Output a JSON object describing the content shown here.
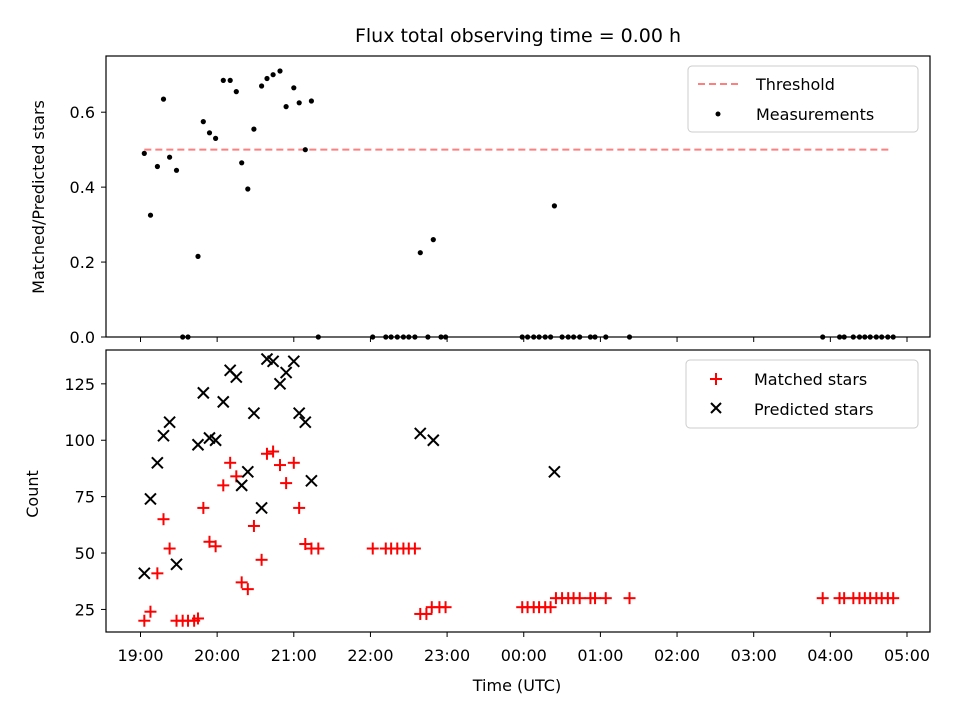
{
  "chart_data": [
    {
      "type": "scatter",
      "title": "Flux total observing time = 0.00 h",
      "xlabel": "",
      "ylabel": "Matched/Predicted stars",
      "ylim": [
        0,
        0.75
      ],
      "yticks": [
        0.0,
        0.2,
        0.4,
        0.6
      ],
      "ytick_labels": [
        "0.0",
        "0.2",
        "0.4",
        "0.6"
      ],
      "legend_position": "top-right",
      "grid": false,
      "threshold": {
        "name": "Threshold",
        "value": 0.5,
        "x_start": 19.05,
        "x_end": 28.8,
        "color": "#ff7f7f"
      },
      "series": [
        {
          "name": "Measurements",
          "color": "#000000",
          "marker": "dot",
          "x": [
            19.05,
            19.13,
            19.22,
            19.3,
            19.38,
            19.47,
            19.55,
            19.62,
            19.75,
            19.82,
            19.9,
            19.98,
            20.08,
            20.17,
            20.25,
            20.32,
            20.4,
            20.48,
            20.58,
            20.65,
            20.73,
            20.82,
            20.9,
            21.0,
            21.07,
            21.15,
            21.23,
            21.32,
            22.03,
            22.2,
            22.27,
            22.35,
            22.43,
            22.5,
            22.58,
            22.65,
            22.75,
            22.82,
            22.92,
            22.98,
            23.98,
            24.05,
            24.13,
            24.2,
            24.28,
            24.35,
            24.4,
            24.5,
            24.58,
            24.65,
            24.73,
            24.87,
            24.93,
            25.07,
            25.38,
            27.9,
            28.12,
            28.18,
            28.3,
            28.38,
            28.45,
            28.52,
            28.6,
            28.67,
            28.75,
            28.82
          ],
          "y": [
            0.49,
            0.325,
            0.455,
            0.635,
            0.48,
            0.445,
            0.0,
            0.0,
            0.215,
            0.575,
            0.545,
            0.53,
            0.685,
            0.685,
            0.655,
            0.465,
            0.395,
            0.555,
            0.67,
            0.69,
            0.7,
            0.71,
            0.615,
            0.665,
            0.625,
            0.5,
            0.63,
            0.0,
            0.0,
            0.0,
            0.0,
            0.0,
            0.0,
            0.0,
            0.0,
            0.225,
            0.0,
            0.26,
            0.0,
            0.0,
            0.0,
            0.0,
            0.0,
            0.0,
            0.0,
            0.0,
            0.35,
            0.0,
            0.0,
            0.0,
            0.0,
            0.0,
            0.0,
            0.0,
            0.0,
            0.0,
            0.0,
            0.0,
            0.0,
            0.0,
            0.0,
            0.0,
            0.0,
            0.0,
            0.0,
            0.0
          ]
        }
      ]
    },
    {
      "type": "scatter",
      "title": "",
      "xlabel": "Time (UTC)",
      "ylabel": "Count",
      "xlim": [
        18.55,
        29.3
      ],
      "ylim": [
        15,
        140
      ],
      "yticks": [
        25,
        50,
        75,
        100,
        125
      ],
      "ytick_labels": [
        "25",
        "50",
        "75",
        "100",
        "125"
      ],
      "xticks": [
        19,
        20,
        21,
        22,
        23,
        24,
        25,
        26,
        27,
        28,
        29
      ],
      "xtick_labels": [
        "19:00",
        "20:00",
        "21:00",
        "22:00",
        "23:00",
        "00:00",
        "01:00",
        "02:00",
        "03:00",
        "04:00",
        "05:00"
      ],
      "legend_position": "top-right",
      "grid": false,
      "series": [
        {
          "name": "Matched stars",
          "color": "#ff0000",
          "marker": "plus",
          "x": [
            19.05,
            19.13,
            19.22,
            19.3,
            19.38,
            19.47,
            19.55,
            19.62,
            19.7,
            19.75,
            19.82,
            19.9,
            19.98,
            20.08,
            20.17,
            20.25,
            20.32,
            20.4,
            20.48,
            20.58,
            20.65,
            20.73,
            20.82,
            20.9,
            21.0,
            21.07,
            21.15,
            21.23,
            21.32,
            22.03,
            22.2,
            22.27,
            22.35,
            22.43,
            22.5,
            22.58,
            22.65,
            22.73,
            22.8,
            22.9,
            22.98,
            23.98,
            24.05,
            24.13,
            24.2,
            24.28,
            24.35,
            24.42,
            24.5,
            24.58,
            24.65,
            24.73,
            24.87,
            24.93,
            25.07,
            25.38,
            27.9,
            28.12,
            28.18,
            28.3,
            28.38,
            28.45,
            28.52,
            28.6,
            28.67,
            28.75,
            28.82
          ],
          "y": [
            20,
            24,
            41,
            65,
            52,
            20,
            20,
            20,
            20,
            21,
            70,
            55,
            53,
            80,
            90,
            84,
            37,
            34,
            62,
            47,
            94,
            95,
            89,
            81,
            90,
            70,
            54,
            52,
            52,
            52,
            52,
            52,
            52,
            52,
            52,
            52,
            23,
            23,
            26,
            26,
            26,
            26,
            26,
            26,
            26,
            26,
            26,
            30,
            30,
            30,
            30,
            30,
            30,
            30,
            30,
            30,
            30,
            30,
            30,
            30,
            30,
            30,
            30,
            30,
            30,
            30,
            30
          ]
        },
        {
          "name": "Predicted stars",
          "color": "#000000",
          "marker": "x",
          "x": [
            19.05,
            19.13,
            19.22,
            19.3,
            19.38,
            19.47,
            19.75,
            19.82,
            19.9,
            19.98,
            20.08,
            20.17,
            20.25,
            20.32,
            20.4,
            20.48,
            20.58,
            20.65,
            20.73,
            20.82,
            20.9,
            21.0,
            21.07,
            21.15,
            21.23,
            22.65,
            22.82,
            24.4
          ],
          "y": [
            41,
            74,
            90,
            102,
            108,
            45,
            98,
            121,
            101,
            100,
            117,
            131,
            128,
            80,
            86,
            112,
            70,
            136,
            135,
            125,
            130,
            135,
            112,
            108,
            82,
            103,
            100,
            86
          ]
        }
      ]
    }
  ]
}
